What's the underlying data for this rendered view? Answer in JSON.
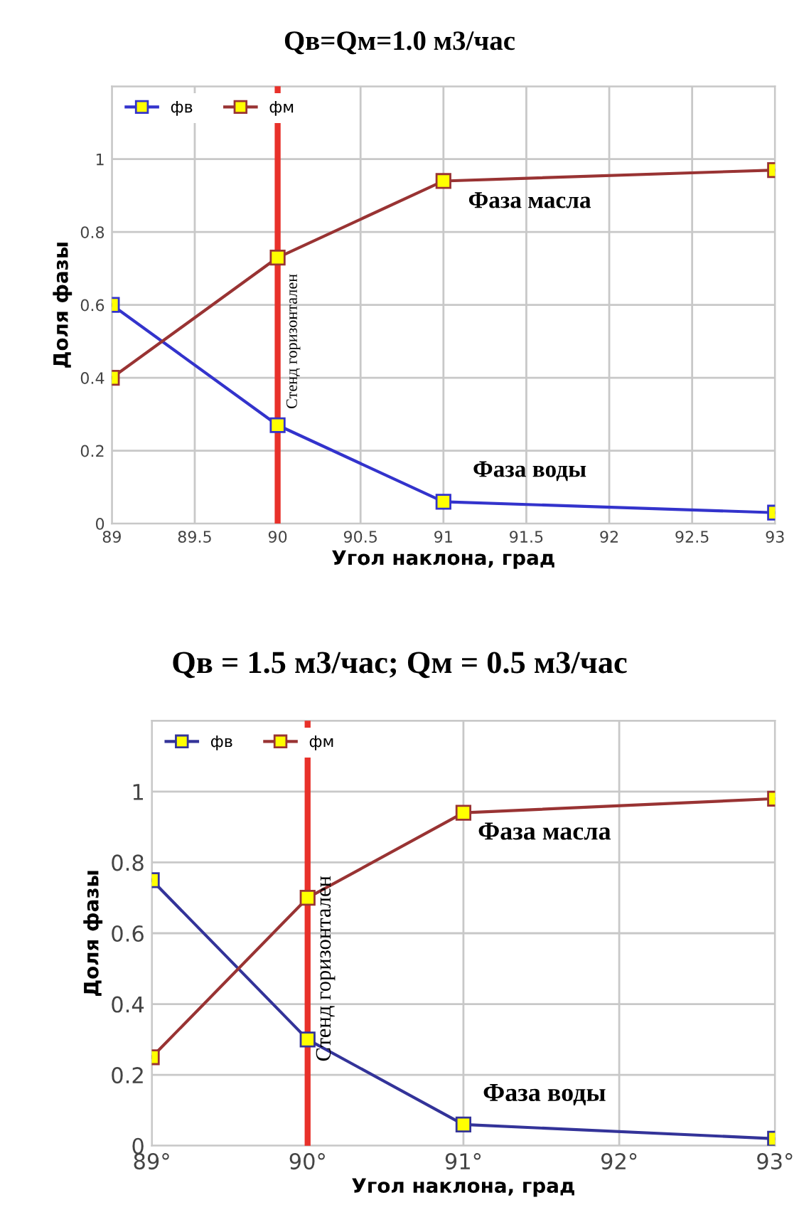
{
  "chart_data": [
    {
      "type": "line",
      "title": "Qв=Qм=1.0 м3/час",
      "xlabel": "Угол наклона, град",
      "ylabel": "Доля фазы",
      "x": [
        89,
        90,
        91,
        93
      ],
      "series": [
        {
          "name": "фв",
          "color": "#3333cc",
          "values": [
            0.6,
            0.27,
            0.06,
            0.03
          ]
        },
        {
          "name": "фм",
          "color": "#993333",
          "values": [
            0.4,
            0.73,
            0.94,
            0.97
          ]
        }
      ],
      "xlim": [
        89,
        93
      ],
      "xticks": [
        89,
        89.5,
        90,
        90.5,
        91,
        91.5,
        92,
        92.5,
        93
      ],
      "ylim": [
        0,
        1.2
      ],
      "yticks": [
        0,
        0.2,
        0.4,
        0.6,
        0.8,
        1,
        {
          "value": 1.2,
          "label": null
        }
      ],
      "ref_lines": [
        {
          "axis": "x",
          "value": 90,
          "label": "Стенд горизонтален",
          "color": "#e8312a"
        }
      ],
      "annotations": [
        "Фаза масла",
        "Фаза воды"
      ],
      "grid": true,
      "legend": "top left",
      "marker": "square",
      "line_style": "solid"
    },
    {
      "type": "line",
      "title": "Qв = 1.5 м3/час; Qм = 0.5 м3/час",
      "xlabel": "Угол наклона, град",
      "ylabel": "Доля фазы",
      "x": [
        89,
        90,
        91,
        93
      ],
      "series": [
        {
          "name": "фв",
          "color": "#333399",
          "values": [
            0.75,
            0.3,
            0.06,
            0.02
          ]
        },
        {
          "name": "фм",
          "color": "#993333",
          "values": [
            0.25,
            0.7,
            0.94,
            0.98
          ]
        }
      ],
      "xlim": [
        89,
        93
      ],
      "xticks": [
        {
          "value": 89,
          "label": "89°"
        },
        {
          "value": 90,
          "label": "90°"
        },
        {
          "value": 91,
          "label": "91°"
        },
        {
          "value": 92,
          "label": "92°"
        },
        {
          "value": 93,
          "label": "93°"
        }
      ],
      "ylim": [
        0,
        1.2
      ],
      "yticks": [
        0,
        0.2,
        0.4,
        0.6,
        0.8,
        1,
        {
          "value": 1.2,
          "label": null
        }
      ],
      "ref_lines": [
        {
          "axis": "x",
          "value": 90,
          "label": "Стенд горизонтален",
          "color": "#e8312a"
        }
      ],
      "annotations": [
        "Фаза масла",
        "Фаза воды"
      ],
      "grid": true,
      "legend": "top left",
      "marker": "square",
      "line_style": "solid"
    }
  ]
}
